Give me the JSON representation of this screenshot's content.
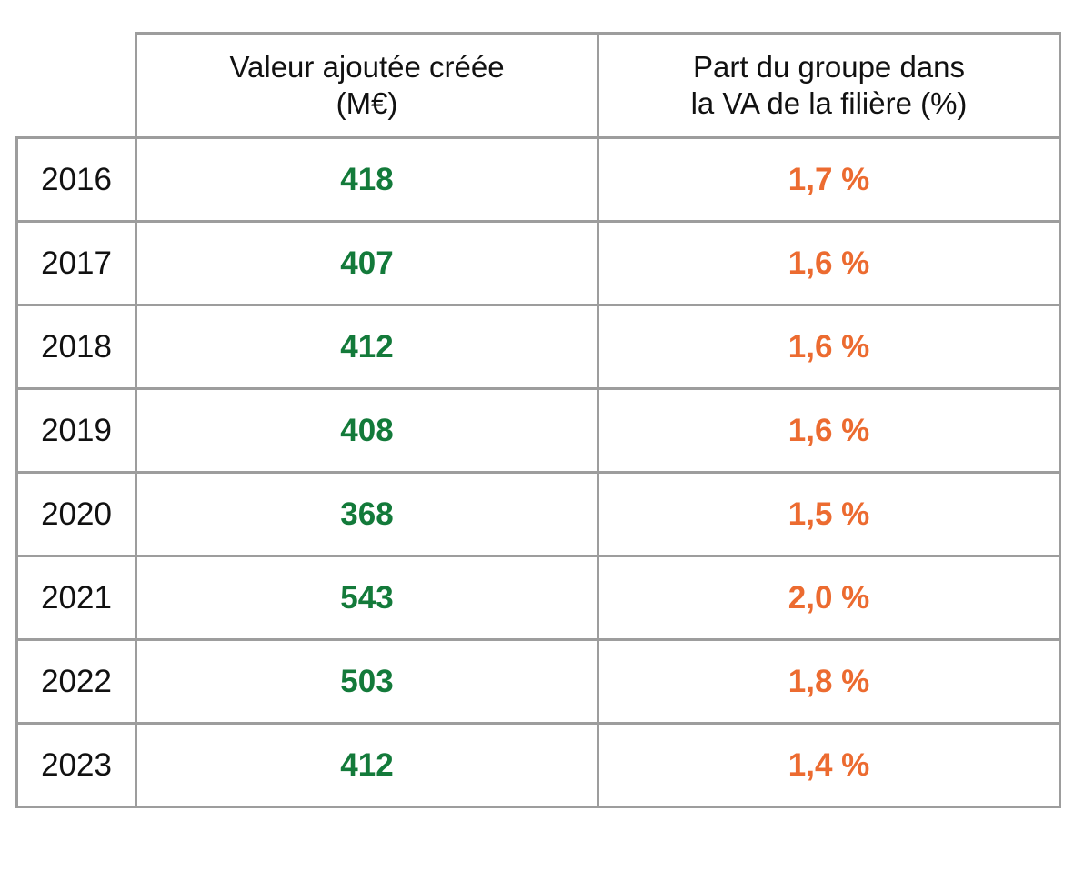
{
  "chart_data": {
    "type": "table",
    "columns": [
      {
        "label_line1": "Valeur ajoutée créée",
        "label_line2": "(M€)"
      },
      {
        "label_line1": "Part du groupe dans",
        "label_line2": "la VA de la filière  (%)"
      }
    ],
    "rows": [
      {
        "year": "2016",
        "va": "418",
        "pct": "1,7 %"
      },
      {
        "year": "2017",
        "va": "407",
        "pct": "1,6 %"
      },
      {
        "year": "2018",
        "va": "412",
        "pct": "1,6 %"
      },
      {
        "year": "2019",
        "va": "408",
        "pct": "1,6 %"
      },
      {
        "year": "2020",
        "va": "368",
        "pct": "1,5 %"
      },
      {
        "year": "2021",
        "va": "543",
        "pct": "2,0 %"
      },
      {
        "year": "2022",
        "va": "503",
        "pct": "1,8 %"
      },
      {
        "year": "2023",
        "va": "412",
        "pct": "1,4 %"
      }
    ],
    "colors": {
      "va": "#137a3a",
      "pct": "#ec6b30",
      "border": "#9d9d9d"
    }
  }
}
